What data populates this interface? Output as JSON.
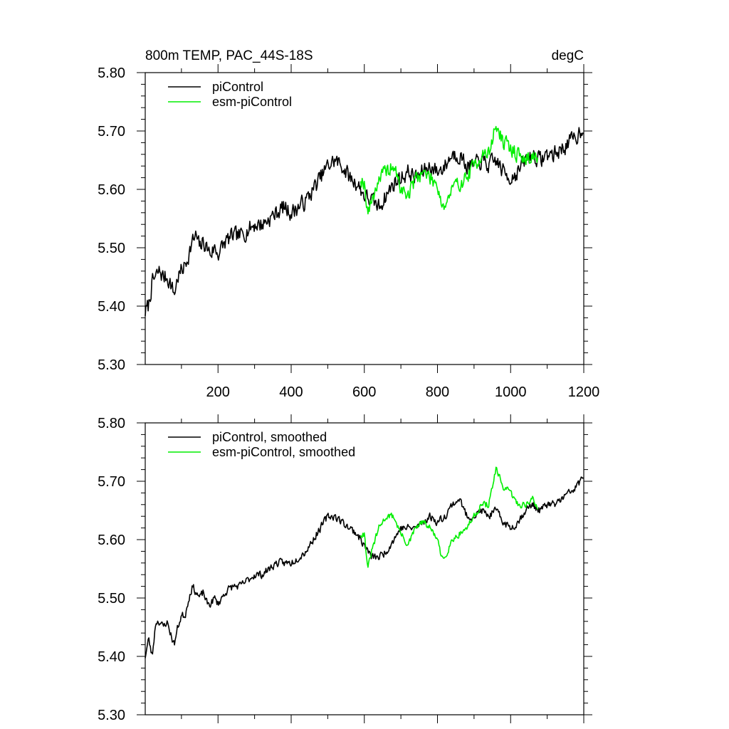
{
  "chart_data": [
    {
      "type": "line",
      "title_left": "800m TEMP, PAC_44S-18S",
      "title_right": "degC",
      "xlim": [
        1,
        1200
      ],
      "ylim": [
        5.3,
        5.8
      ],
      "x_ticks": [
        200,
        400,
        600,
        800,
        1000,
        1200
      ],
      "x_tick_labels": [
        "200",
        "400",
        "600",
        "800",
        "1000",
        "1200"
      ],
      "y_ticks": [
        5.3,
        5.4,
        5.5,
        5.6,
        5.7,
        5.8
      ],
      "y_tick_labels": [
        "5.30",
        "5.40",
        "5.50",
        "5.60",
        "5.70",
        "5.80"
      ],
      "legend_position": "top-left",
      "series": [
        {
          "name": "piControl",
          "color": "#000000",
          "anchors": [
            [
              1,
              5.39
            ],
            [
              10,
              5.4
            ],
            [
              20,
              5.44
            ],
            [
              30,
              5.45
            ],
            [
              40,
              5.46
            ],
            [
              50,
              5.45
            ],
            [
              60,
              5.45
            ],
            [
              70,
              5.44
            ],
            [
              80,
              5.42
            ],
            [
              90,
              5.45
            ],
            [
              100,
              5.46
            ],
            [
              110,
              5.47
            ],
            [
              120,
              5.49
            ],
            [
              130,
              5.51
            ],
            [
              140,
              5.52
            ],
            [
              150,
              5.5
            ],
            [
              160,
              5.51
            ],
            [
              170,
              5.5
            ],
            [
              180,
              5.49
            ],
            [
              190,
              5.5
            ],
            [
              200,
              5.49
            ],
            [
              220,
              5.51
            ],
            [
              240,
              5.52
            ],
            [
              260,
              5.52
            ],
            [
              280,
              5.53
            ],
            [
              300,
              5.54
            ],
            [
              320,
              5.54
            ],
            [
              340,
              5.55
            ],
            [
              360,
              5.56
            ],
            [
              380,
              5.57
            ],
            [
              400,
              5.56
            ],
            [
              420,
              5.57
            ],
            [
              440,
              5.58
            ],
            [
              460,
              5.6
            ],
            [
              480,
              5.62
            ],
            [
              500,
              5.64
            ],
            [
              520,
              5.65
            ],
            [
              540,
              5.64
            ],
            [
              560,
              5.62
            ],
            [
              580,
              5.61
            ],
            [
              600,
              5.59
            ],
            [
              620,
              5.58
            ],
            [
              640,
              5.57
            ],
            [
              660,
              5.59
            ],
            [
              680,
              5.61
            ],
            [
              700,
              5.62
            ],
            [
              720,
              5.63
            ],
            [
              740,
              5.62
            ],
            [
              760,
              5.63
            ],
            [
              780,
              5.64
            ],
            [
              800,
              5.63
            ],
            [
              820,
              5.64
            ],
            [
              840,
              5.66
            ],
            [
              860,
              5.66
            ],
            [
              880,
              5.64
            ],
            [
              900,
              5.64
            ],
            [
              920,
              5.65
            ],
            [
              940,
              5.64
            ],
            [
              960,
              5.65
            ],
            [
              980,
              5.63
            ],
            [
              1000,
              5.62
            ],
            [
              1020,
              5.63
            ],
            [
              1040,
              5.65
            ],
            [
              1060,
              5.66
            ],
            [
              1080,
              5.65
            ],
            [
              1100,
              5.66
            ],
            [
              1120,
              5.66
            ],
            [
              1140,
              5.67
            ],
            [
              1160,
              5.68
            ],
            [
              1180,
              5.69
            ],
            [
              1200,
              5.71
            ]
          ],
          "noise_amp": 0.013,
          "noise_seed": 7
        },
        {
          "name": "esm-piControl",
          "color": "#00ee00",
          "anchors": [
            [
              590,
              5.62
            ],
            [
              600,
              5.61
            ],
            [
              610,
              5.56
            ],
            [
              620,
              5.58
            ],
            [
              640,
              5.62
            ],
            [
              660,
              5.63
            ],
            [
              680,
              5.64
            ],
            [
              700,
              5.6
            ],
            [
              720,
              5.59
            ],
            [
              740,
              5.62
            ],
            [
              760,
              5.63
            ],
            [
              780,
              5.62
            ],
            [
              800,
              5.61
            ],
            [
              810,
              5.58
            ],
            [
              820,
              5.57
            ],
            [
              840,
              5.6
            ],
            [
              860,
              5.61
            ],
            [
              880,
              5.62
            ],
            [
              900,
              5.64
            ],
            [
              920,
              5.66
            ],
            [
              940,
              5.66
            ],
            [
              960,
              5.71
            ],
            [
              980,
              5.68
            ],
            [
              1000,
              5.67
            ],
            [
              1020,
              5.66
            ],
            [
              1040,
              5.65
            ],
            [
              1060,
              5.66
            ],
            [
              1075,
              5.65
            ]
          ],
          "noise_amp": 0.012,
          "noise_seed": 19
        }
      ]
    },
    {
      "type": "line",
      "xlim": [
        1,
        1200
      ],
      "ylim": [
        5.3,
        5.8
      ],
      "y_ticks": [
        5.3,
        5.4,
        5.5,
        5.6,
        5.7,
        5.8
      ],
      "y_tick_labels": [
        "5.30",
        "5.40",
        "5.50",
        "5.60",
        "5.70",
        "5.80"
      ],
      "legend_position": "top-left",
      "series": [
        {
          "name": "piControl, smoothed",
          "color": "#000000",
          "anchors": [
            [
              1,
              5.4
            ],
            [
              10,
              5.43
            ],
            [
              20,
              5.4
            ],
            [
              30,
              5.46
            ],
            [
              40,
              5.46
            ],
            [
              50,
              5.45
            ],
            [
              60,
              5.46
            ],
            [
              70,
              5.44
            ],
            [
              80,
              5.42
            ],
            [
              90,
              5.45
            ],
            [
              100,
              5.47
            ],
            [
              110,
              5.47
            ],
            [
              120,
              5.5
            ],
            [
              130,
              5.52
            ],
            [
              140,
              5.51
            ],
            [
              150,
              5.5
            ],
            [
              160,
              5.51
            ],
            [
              170,
              5.49
            ],
            [
              180,
              5.49
            ],
            [
              190,
              5.5
            ],
            [
              200,
              5.49
            ],
            [
              220,
              5.51
            ],
            [
              240,
              5.52
            ],
            [
              260,
              5.52
            ],
            [
              280,
              5.53
            ],
            [
              300,
              5.54
            ],
            [
              320,
              5.54
            ],
            [
              340,
              5.55
            ],
            [
              360,
              5.56
            ],
            [
              380,
              5.56
            ],
            [
              400,
              5.56
            ],
            [
              420,
              5.57
            ],
            [
              440,
              5.58
            ],
            [
              460,
              5.6
            ],
            [
              480,
              5.62
            ],
            [
              500,
              5.64
            ],
            [
              520,
              5.64
            ],
            [
              540,
              5.63
            ],
            [
              560,
              5.62
            ],
            [
              580,
              5.61
            ],
            [
              600,
              5.59
            ],
            [
              620,
              5.57
            ],
            [
              640,
              5.57
            ],
            [
              660,
              5.58
            ],
            [
              680,
              5.6
            ],
            [
              700,
              5.62
            ],
            [
              720,
              5.62
            ],
            [
              740,
              5.62
            ],
            [
              760,
              5.63
            ],
            [
              780,
              5.64
            ],
            [
              800,
              5.63
            ],
            [
              820,
              5.64
            ],
            [
              840,
              5.66
            ],
            [
              860,
              5.67
            ],
            [
              880,
              5.64
            ],
            [
              900,
              5.64
            ],
            [
              920,
              5.65
            ],
            [
              940,
              5.64
            ],
            [
              960,
              5.65
            ],
            [
              980,
              5.63
            ],
            [
              1000,
              5.62
            ],
            [
              1020,
              5.63
            ],
            [
              1040,
              5.65
            ],
            [
              1060,
              5.66
            ],
            [
              1080,
              5.65
            ],
            [
              1100,
              5.66
            ],
            [
              1120,
              5.66
            ],
            [
              1140,
              5.67
            ],
            [
              1160,
              5.68
            ],
            [
              1180,
              5.69
            ],
            [
              1200,
              5.71
            ]
          ],
          "noise_amp": 0.006,
          "noise_seed": 23
        },
        {
          "name": "esm-piControl, smoothed",
          "color": "#00ee00",
          "anchors": [
            [
              590,
              5.61
            ],
            [
              600,
              5.61
            ],
            [
              610,
              5.55
            ],
            [
              620,
              5.58
            ],
            [
              640,
              5.62
            ],
            [
              660,
              5.64
            ],
            [
              680,
              5.64
            ],
            [
              700,
              5.61
            ],
            [
              720,
              5.59
            ],
            [
              740,
              5.62
            ],
            [
              760,
              5.63
            ],
            [
              780,
              5.62
            ],
            [
              800,
              5.6
            ],
            [
              810,
              5.57
            ],
            [
              820,
              5.57
            ],
            [
              840,
              5.6
            ],
            [
              860,
              5.61
            ],
            [
              880,
              5.62
            ],
            [
              900,
              5.64
            ],
            [
              920,
              5.66
            ],
            [
              940,
              5.66
            ],
            [
              960,
              5.72
            ],
            [
              980,
              5.69
            ],
            [
              1000,
              5.68
            ],
            [
              1020,
              5.66
            ],
            [
              1040,
              5.66
            ],
            [
              1060,
              5.67
            ],
            [
              1075,
              5.65
            ]
          ],
          "noise_amp": 0.005,
          "noise_seed": 31
        }
      ]
    }
  ]
}
